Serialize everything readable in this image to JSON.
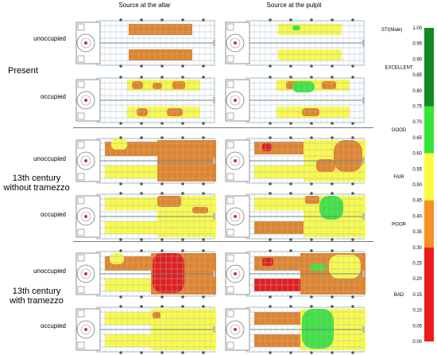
{
  "columns": [
    "Source at the altar",
    "Source at the pulpit"
  ],
  "groups": [
    {
      "label": "Present",
      "rows": [
        "unoccupied",
        "occupied"
      ]
    },
    {
      "label": "13th century without tramezzo",
      "label_lines": [
        "13th century",
        "without tramezzo"
      ],
      "rows": [
        "unoccupied",
        "occupied"
      ]
    },
    {
      "label": "13th century with tramezzo",
      "label_lines": [
        "13th century",
        "with tramezzo"
      ],
      "rows": [
        "unoccupied",
        "occupied"
      ]
    }
  ],
  "scale": {
    "title": "STI(Male)",
    "ticks": [
      "1.00",
      "0.95",
      "0.90",
      "0.85",
      "0.80",
      "0.75",
      "0.70",
      "0.65",
      "0.60",
      "0.55",
      "0.50",
      "0.45",
      "0.40",
      "0.35",
      "0.30",
      "0.25",
      "0.20",
      "0.15",
      "0.10",
      "0.05",
      "0.00"
    ],
    "categories": [
      {
        "label": "EXCELLENT",
        "from": 0.75,
        "to": 1.0,
        "color": "#138a22"
      },
      {
        "label": "GOOD",
        "from": 0.6,
        "to": 0.75,
        "color": "#35e637"
      },
      {
        "label": "FAIR",
        "from": 0.45,
        "to": 0.6,
        "color": "#fbfb45"
      },
      {
        "label": "POOR",
        "from": 0.3,
        "to": 0.45,
        "color": "#f59023"
      },
      {
        "label": "BAD",
        "from": 0.0,
        "to": 0.3,
        "color": "#ee1c1c"
      }
    ]
  },
  "colors": {
    "bad": "#e41d1d",
    "poor": "#e2832b",
    "fair": "#fafa4a",
    "good": "#3fe13e",
    "plan_line": "#9ab8c8"
  }
}
